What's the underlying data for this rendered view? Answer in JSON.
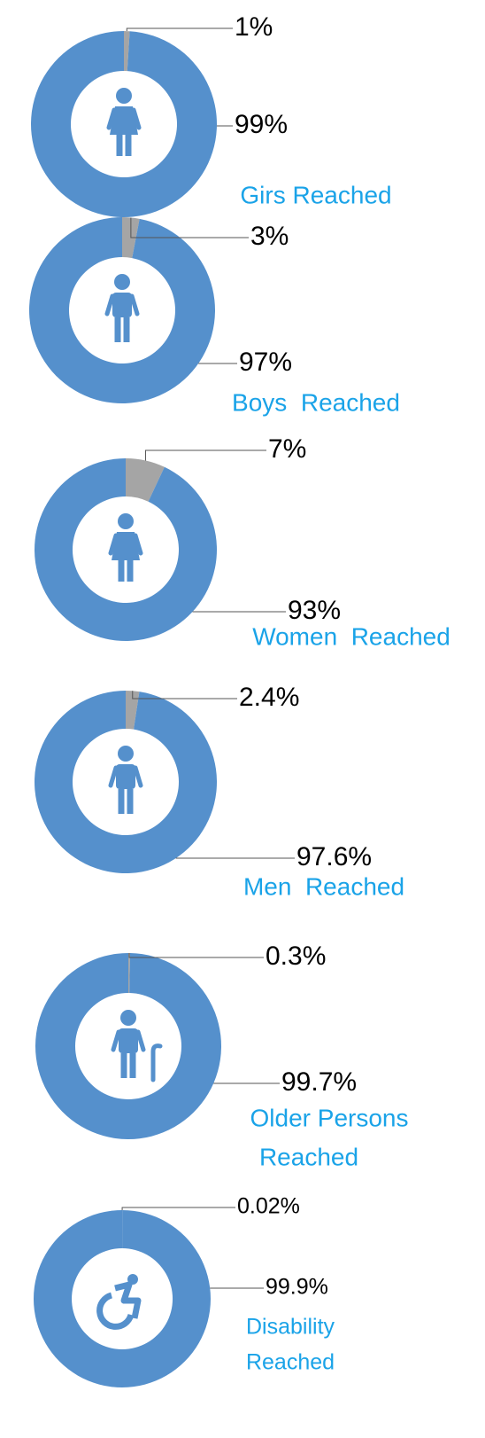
{
  "chart_data": [
    {
      "type": "pie",
      "donut": true,
      "title": [
        "Girs Reached"
      ],
      "values": [
        1,
        99
      ],
      "value_labels": [
        "1%",
        "99%"
      ],
      "colors": [
        "#a5a5a5",
        "#5590cc"
      ]
    },
    {
      "type": "pie",
      "donut": true,
      "title": [
        "Boys  Reached"
      ],
      "values": [
        3,
        97
      ],
      "value_labels": [
        "3%",
        "97%"
      ],
      "colors": [
        "#a5a5a5",
        "#5590cc"
      ]
    },
    {
      "type": "pie",
      "donut": true,
      "title": [
        "Women  Reached"
      ],
      "values": [
        7,
        93
      ],
      "value_labels": [
        "7%",
        "93%"
      ],
      "colors": [
        "#a5a5a5",
        "#5590cc"
      ]
    },
    {
      "type": "pie",
      "donut": true,
      "title": [
        "Men  Reached"
      ],
      "values": [
        2.4,
        97.6
      ],
      "value_labels": [
        "2.4%",
        "97.6%"
      ],
      "colors": [
        "#a5a5a5",
        "#5590cc"
      ]
    },
    {
      "type": "pie",
      "donut": true,
      "title": [
        "Older Persons",
        "Reached"
      ],
      "values": [
        0.3,
        99.7
      ],
      "value_labels": [
        "0.3%",
        "99.7%"
      ],
      "colors": [
        "#a5a5a5",
        "#5590cc"
      ]
    },
    {
      "type": "pie",
      "donut": true,
      "title": [
        "Disability",
        "Reached"
      ],
      "values": [
        0.02,
        99.9
      ],
      "value_labels": [
        "0.02%",
        "99.9%"
      ],
      "colors": [
        "#a5a5a5",
        "#5590cc"
      ]
    }
  ]
}
